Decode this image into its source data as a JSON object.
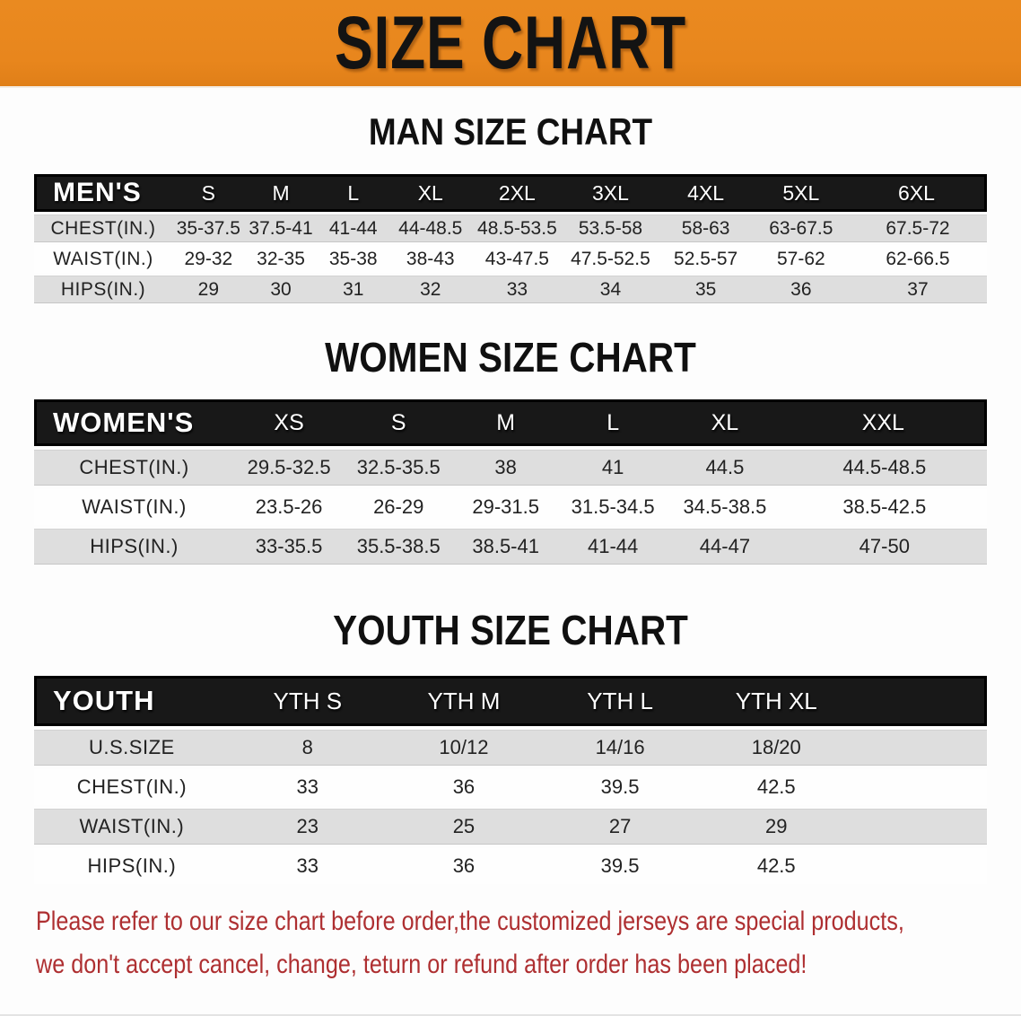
{
  "banner": {
    "title": "SIZE CHART",
    "bg_color": "#E8861D",
    "text_color": "#131313"
  },
  "sections": {
    "men": {
      "heading": "MAN SIZE CHART",
      "table": {
        "header": [
          "MEN'S",
          "S",
          "M",
          "L",
          "XL",
          "2XL",
          "3XL",
          "4XL",
          "5XL",
          "6XL"
        ],
        "rows": [
          {
            "label": "CHEST(IN.)",
            "values": [
              "35-37.5",
              "37.5-41",
              "41-44",
              "44-48.5",
              "48.5-53.5",
              "53.5-58",
              "58-63",
              "63-67.5",
              "67.5-72"
            ]
          },
          {
            "label": "WAIST(IN.)",
            "values": [
              "29-32",
              "32-35",
              "35-38",
              "38-43",
              "43-47.5",
              "47.5-52.5",
              "52.5-57",
              "57-62",
              "62-66.5"
            ]
          },
          {
            "label": "HIPS(IN.)",
            "values": [
              "29",
              "30",
              "31",
              "32",
              "33",
              "34",
              "35",
              "36",
              "37"
            ]
          }
        ]
      }
    },
    "women": {
      "heading": "WOMEN SIZE CHART",
      "table": {
        "header": [
          "WOMEN'S",
          "XS",
          "S",
          "M",
          "L",
          "XL",
          "XXL"
        ],
        "rows": [
          {
            "label": "CHEST(IN.)",
            "values": [
              "29.5-32.5",
              "32.5-35.5",
              "38",
              "41",
              "44.5",
              "44.5-48.5"
            ]
          },
          {
            "label": "WAIST(IN.)",
            "values": [
              "23.5-26",
              "26-29",
              "29-31.5",
              "31.5-34.5",
              "34.5-38.5",
              "38.5-42.5"
            ]
          },
          {
            "label": "HIPS(IN.)",
            "values": [
              "33-35.5",
              "35.5-38.5",
              "38.5-41",
              "41-44",
              "44-47",
              "47-50"
            ]
          }
        ]
      }
    },
    "youth": {
      "heading": "YOUTH SIZE CHART",
      "table": {
        "header": [
          "YOUTH",
          "YTH S",
          "YTH M",
          "YTH L",
          "YTH XL"
        ],
        "rows": [
          {
            "label": "U.S.SIZE",
            "values": [
              "8",
              "10/12",
              "14/16",
              "18/20"
            ]
          },
          {
            "label": "CHEST(IN.)",
            "values": [
              "33",
              "36",
              "39.5",
              "42.5"
            ]
          },
          {
            "label": "WAIST(IN.)",
            "values": [
              "23",
              "25",
              "27",
              "29"
            ]
          },
          {
            "label": "HIPS(IN.)",
            "values": [
              "33",
              "36",
              "39.5",
              "42.5"
            ]
          }
        ]
      }
    }
  },
  "footer": {
    "lines": [
      "Please refer to our size chart before order,the customized jerseys are special products,",
      "we don't accept cancel, change, teturn or refund after order has been placed!"
    ],
    "color": "#AE2F31"
  },
  "colors": {
    "banner_orange": "#E8861D",
    "header_black": "#181818",
    "row_gray": "#DEDEDE",
    "row_white": "#FEFEFE",
    "notice_red": "#AE2F31"
  }
}
